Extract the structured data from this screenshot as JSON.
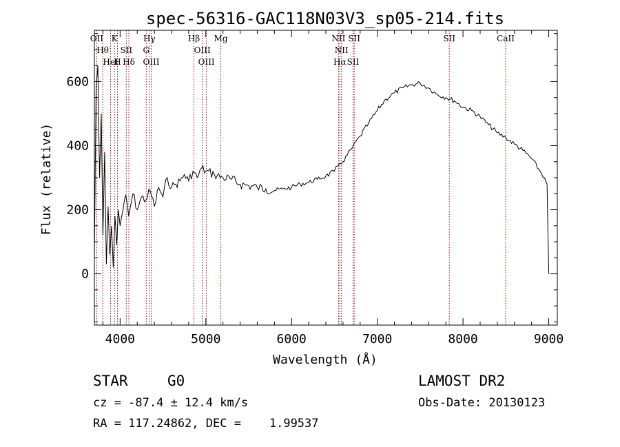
{
  "title": "spec-56316-GAC118N03V3_sp05-214.fits",
  "info": {
    "class": "STAR",
    "subclass": "G0",
    "survey": "LAMOST DR2",
    "cz": "cz = -87.4 ± 12.4 km/s",
    "obs_date": "Obs-Date: 20130123",
    "coords": "RA = 117.24862, DEC =    1.99537"
  },
  "chart_data": {
    "type": "line",
    "title": "spec-56316-GAC118N03V3_sp05-214.fits",
    "xlabel": "Wavelength (Å)",
    "ylabel": "Flux (relative)",
    "xlim": [
      3700,
      9100
    ],
    "ylim": [
      -160,
      760
    ],
    "x_ticks": [
      4000,
      5000,
      6000,
      7000,
      8000,
      9000
    ],
    "y_ticks": [
      0,
      200,
      400,
      600
    ],
    "grid": false,
    "legend": "none",
    "line_color": "#000000",
    "marker_color": "#8b0000",
    "series": [
      {
        "x": [
          3700,
          3720,
          3740,
          3760,
          3780,
          3800,
          3820,
          3840,
          3860,
          3880,
          3900,
          3920,
          3940,
          3960,
          3980,
          4000,
          4050,
          4100,
          4150,
          4200,
          4250,
          4300,
          4350,
          4400,
          4450,
          4500,
          4550,
          4600,
          4650,
          4700,
          4750,
          4800,
          4850,
          4900,
          4950,
          5000,
          5100,
          5200,
          5300,
          5400,
          5500,
          5600,
          5700,
          5800,
          5900,
          6000,
          6100,
          6200,
          6300,
          6400,
          6500,
          6560,
          6600,
          6700,
          6800,
          6900,
          7000,
          7100,
          7200,
          7300,
          7400,
          7500,
          7600,
          7700,
          7800,
          7900,
          8000,
          8100,
          8200,
          8300,
          8400,
          8500,
          8600,
          8700,
          8800,
          8900,
          8950,
          8980,
          9000
        ],
        "y": [
          60,
          580,
          650,
          300,
          500,
          120,
          380,
          30,
          210,
          60,
          150,
          20,
          180,
          90,
          200,
          150,
          230,
          180,
          250,
          200,
          240,
          230,
          260,
          210,
          270,
          240,
          300,
          270,
          280,
          290,
          310,
          290,
          320,
          300,
          330,
          320,
          310,
          300,
          295,
          280,
          275,
          270,
          265,
          260,
          265,
          270,
          280,
          285,
          295,
          305,
          320,
          345,
          350,
          390,
          430,
          470,
          510,
          545,
          565,
          580,
          590,
          595,
          580,
          560,
          550,
          540,
          520,
          510,
          490,
          465,
          440,
          425,
          405,
          385,
          360,
          320,
          300,
          280,
          0
        ]
      }
    ],
    "spectral_lines": [
      {
        "name": "OII",
        "wavelength": 3727
      },
      {
        "name": "Hθ",
        "wavelength": 3798
      },
      {
        "name": "HeI",
        "wavelength": 3889
      },
      {
        "name": "K",
        "wavelength": 3934
      },
      {
        "name": "H",
        "wavelength": 3969
      },
      {
        "name": "SII",
        "wavelength": 4072
      },
      {
        "name": "Hδ",
        "wavelength": 4102
      },
      {
        "name": "Hγ",
        "wavelength": 4341
      },
      {
        "name": "G",
        "wavelength": 4305
      },
      {
        "name": "OIII",
        "wavelength": 4363
      },
      {
        "name": "Hβ",
        "wavelength": 4861
      },
      {
        "name": "OIII",
        "wavelength": 4959
      },
      {
        "name": "OIII",
        "wavelength": 5007
      },
      {
        "name": "Mg",
        "wavelength": 5175
      },
      {
        "name": "NII",
        "wavelength": 6548
      },
      {
        "name": "NII",
        "wavelength": 6583
      },
      {
        "name": "Hα",
        "wavelength": 6563
      },
      {
        "name": "SII",
        "wavelength": 6717
      },
      {
        "name": "SII",
        "wavelength": 6731
      },
      {
        "name": "SII",
        "wavelength": 7840
      },
      {
        "name": "CaII",
        "wavelength": 8498
      }
    ]
  }
}
